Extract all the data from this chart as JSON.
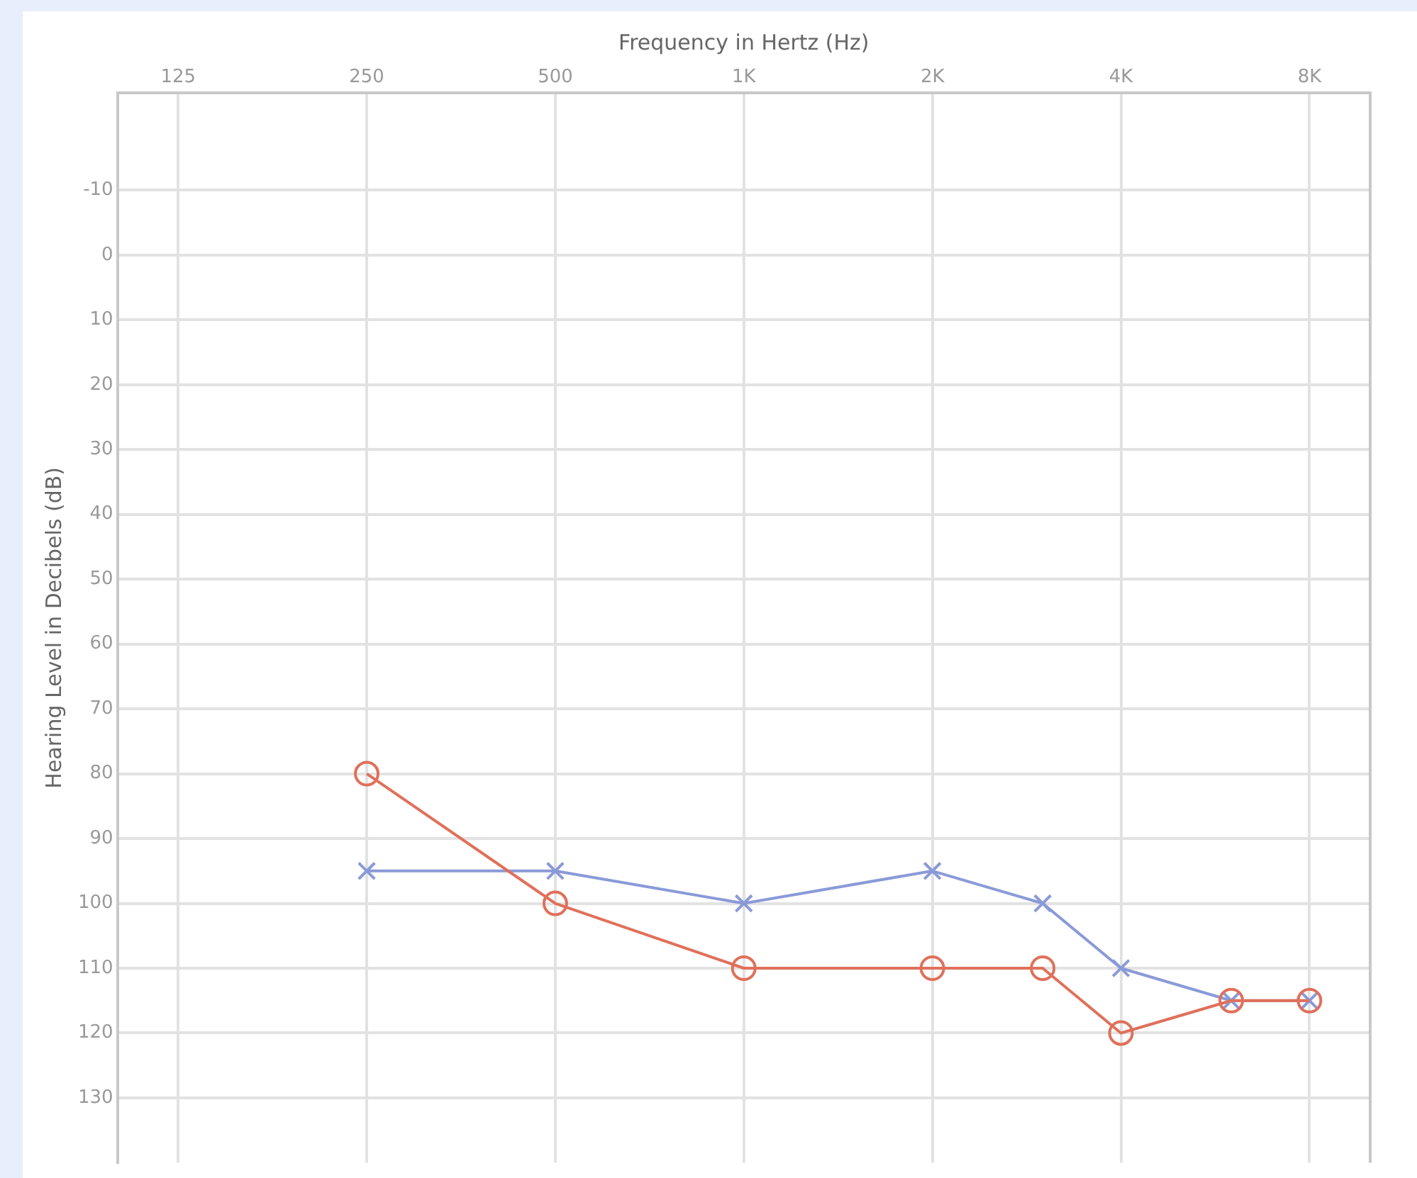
{
  "chart_data": {
    "type": "line",
    "xlabel": "Frequency in Hertz (Hz)",
    "ylabel": "Hearing Level in Decibels (dB)",
    "log": "x",
    "grid": true,
    "legend": false,
    "xlim": [
      100,
      10000
    ],
    "xticks": [
      125,
      250,
      500,
      {
        "value": 1000,
        "label": "1K"
      },
      {
        "value": 2000,
        "label": "2K"
      },
      {
        "value": 4000,
        "label": "4K"
      },
      {
        "value": 8000,
        "label": "8K"
      }
    ],
    "ylim": [
      140,
      -25
    ],
    "yticks": [
      -10,
      0,
      10,
      20,
      30,
      40,
      50,
      60,
      70,
      80,
      90,
      100,
      110,
      120,
      130
    ],
    "x": [
      250,
      500,
      1000,
      2000,
      3000,
      4000,
      6000,
      8000
    ],
    "series": [
      {
        "color": "#e0705a",
        "marker": "circle",
        "values": [
          80,
          100,
          110,
          110,
          110,
          120,
          115,
          115
        ]
      },
      {
        "color": "#8a9ad8",
        "marker": "cross",
        "values": [
          95,
          95,
          100,
          95,
          100,
          110,
          115,
          115
        ]
      }
    ]
  }
}
